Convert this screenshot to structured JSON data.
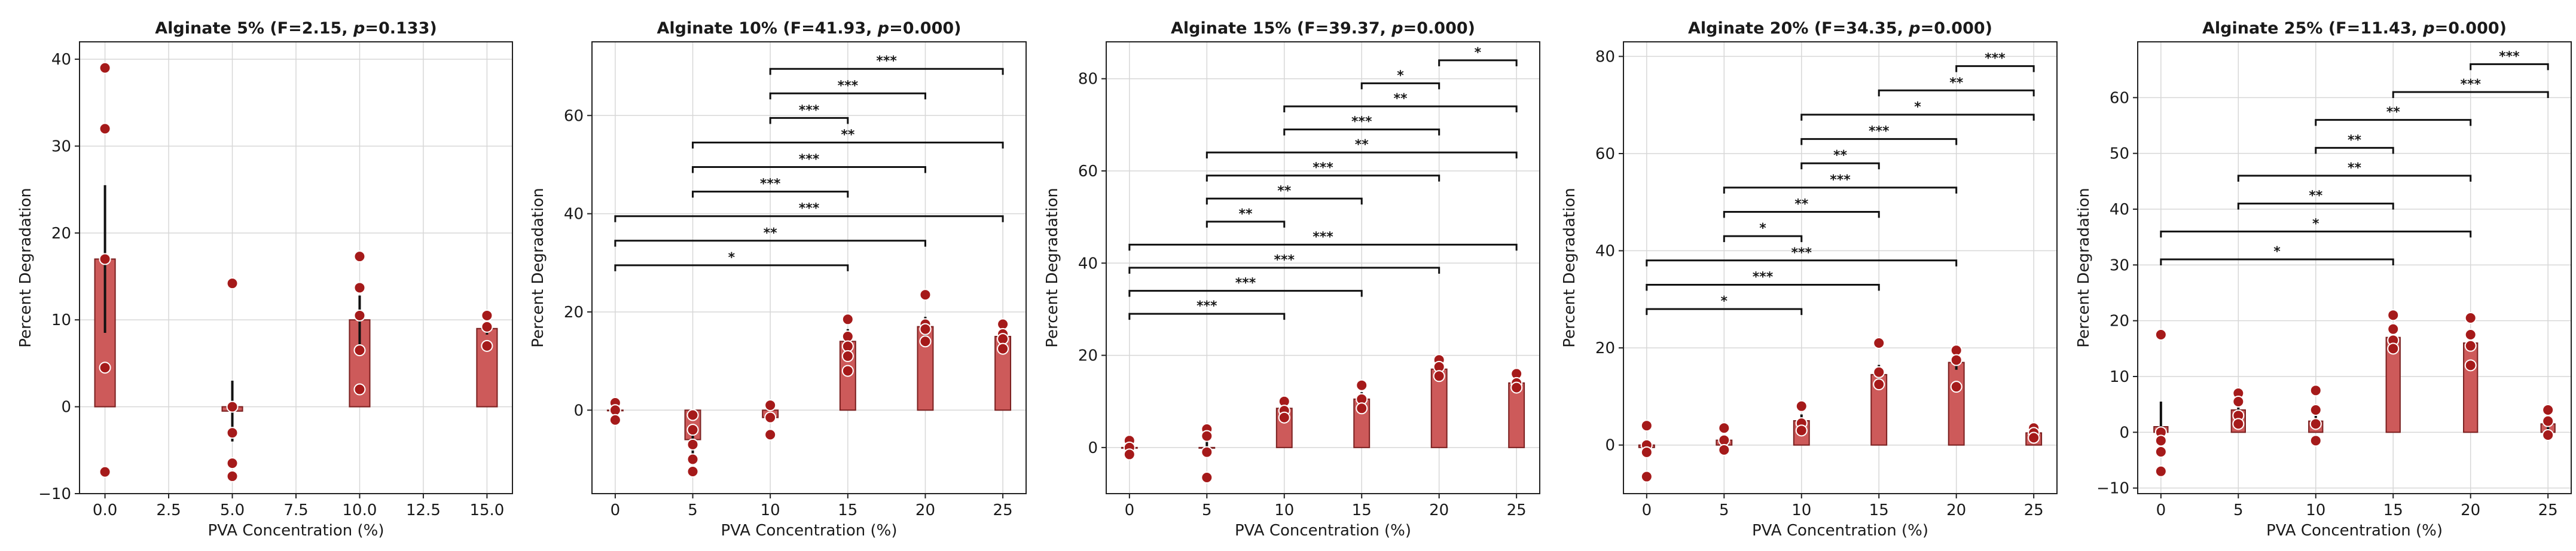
{
  "figure": {
    "title": ""
  },
  "chart_data": [
    {
      "type": "bar",
      "title_prefix": "Alginate 5% (F=2.15, ",
      "title_p": "p",
      "title_suffix": "=0.133)",
      "xlabel": "PVA Concentration (%)",
      "ylabel": "Percent Degradation",
      "xlim": [
        -1,
        16
      ],
      "ylim": [
        -10,
        42
      ],
      "xticks": [
        0,
        2.5,
        5,
        7.5,
        10,
        12.5,
        15
      ],
      "xtick_labels": [
        "0.0",
        "2.5",
        "5.0",
        "7.5",
        "10.0",
        "12.5",
        "15.0"
      ],
      "yticks": [
        -10,
        0,
        10,
        20,
        30,
        40
      ],
      "ytick_labels": [
        "−10",
        "0",
        "10",
        "20",
        "30",
        "40"
      ],
      "bar_width": 0.8,
      "groups": [
        {
          "x": 0,
          "mean": 17,
          "err": 8.5,
          "points": [
            39,
            32,
            17,
            4.5,
            -7.5
          ]
        },
        {
          "x": 5,
          "mean": -0.5,
          "err": 3.5,
          "points": [
            14.2,
            0,
            -3,
            -6.5,
            -8
          ]
        },
        {
          "x": 10,
          "mean": 10,
          "err": 2.8,
          "points": [
            17.3,
            13.7,
            10.5,
            6.5,
            2
          ]
        },
        {
          "x": 15,
          "mean": 9,
          "err": 0.7,
          "points": [
            10.5,
            9.2,
            7
          ]
        }
      ],
      "comparisons": []
    },
    {
      "type": "bar",
      "title_prefix": "Alginate 10% (F=41.93, ",
      "title_p": "p",
      "title_suffix": "=0.000)",
      "xlabel": "PVA Concentration (%)",
      "ylabel": "Percent Degradation",
      "xlim": [
        -1.5,
        26.5
      ],
      "ylim": [
        -17,
        75
      ],
      "xticks": [
        0,
        5,
        10,
        15,
        20,
        25
      ],
      "xtick_labels": [
        "0",
        "5",
        "10",
        "15",
        "20",
        "25"
      ],
      "yticks": [
        0,
        20,
        40,
        60
      ],
      "ytick_labels": [
        "0",
        "20",
        "40",
        "60"
      ],
      "bar_width": 1,
      "groups": [
        {
          "x": 0,
          "mean": 0,
          "err": 0.8,
          "points": [
            1.5,
            0,
            -2
          ]
        },
        {
          "x": 5,
          "mean": -6,
          "err": 3,
          "points": [
            -1,
            -4,
            -7,
            -10,
            -12.5
          ]
        },
        {
          "x": 10,
          "mean": -1.5,
          "err": 1,
          "points": [
            1,
            -1.5,
            -5
          ]
        },
        {
          "x": 15,
          "mean": 14,
          "err": 2.5,
          "points": [
            18.5,
            15,
            13,
            11,
            8
          ]
        },
        {
          "x": 20,
          "mean": 17,
          "err": 2,
          "points": [
            23.5,
            17.5,
            16.5,
            14
          ]
        },
        {
          "x": 25,
          "mean": 15,
          "err": 1.3,
          "points": [
            17.5,
            15.5,
            14.5,
            12.5
          ]
        }
      ],
      "comparisons": [
        {
          "x1": 0,
          "x2": 15,
          "y": 29.5,
          "label": "*"
        },
        {
          "x1": 0,
          "x2": 20,
          "y": 34.5,
          "label": "**"
        },
        {
          "x1": 0,
          "x2": 25,
          "y": 39.5,
          "label": "***"
        },
        {
          "x1": 5,
          "x2": 15,
          "y": 44.5,
          "label": "***"
        },
        {
          "x1": 5,
          "x2": 20,
          "y": 49.5,
          "label": "***"
        },
        {
          "x1": 5,
          "x2": 25,
          "y": 54.5,
          "label": "**"
        },
        {
          "x1": 10,
          "x2": 15,
          "y": 59.5,
          "label": "***"
        },
        {
          "x1": 10,
          "x2": 20,
          "y": 64.5,
          "label": "***"
        },
        {
          "x1": 10,
          "x2": 25,
          "y": 69.5,
          "label": "***"
        }
      ]
    },
    {
      "type": "bar",
      "title_prefix": "Alginate 15% (F=39.37, ",
      "title_p": "p",
      "title_suffix": "=0.000)",
      "xlabel": "PVA Concentration (%)",
      "ylabel": "Percent Degradation",
      "xlim": [
        -1.5,
        26.5
      ],
      "ylim": [
        -10,
        88
      ],
      "xticks": [
        0,
        5,
        10,
        15,
        20,
        25
      ],
      "xtick_labels": [
        "0",
        "5",
        "10",
        "15",
        "20",
        "25"
      ],
      "yticks": [
        0,
        20,
        40,
        60,
        80
      ],
      "ytick_labels": [
        "0",
        "20",
        "40",
        "60",
        "80"
      ],
      "bar_width": 1,
      "groups": [
        {
          "x": 0,
          "mean": 0,
          "err": 0.8,
          "points": [
            1.5,
            0,
            -1.5
          ]
        },
        {
          "x": 5,
          "mean": 0,
          "err": 1.5,
          "points": [
            4,
            2.5,
            -1,
            -6.5
          ]
        },
        {
          "x": 10,
          "mean": 8.5,
          "err": 1.2,
          "points": [
            10,
            8,
            6.5
          ]
        },
        {
          "x": 15,
          "mean": 10.5,
          "err": 1.5,
          "points": [
            13.5,
            10.5,
            8.5
          ]
        },
        {
          "x": 20,
          "mean": 17,
          "err": 1.5,
          "points": [
            19,
            17.5,
            15.5
          ]
        },
        {
          "x": 25,
          "mean": 14,
          "err": 1,
          "points": [
            16,
            14,
            13
          ]
        }
      ],
      "comparisons": [
        {
          "x1": 0,
          "x2": 10,
          "y": 29,
          "label": "***"
        },
        {
          "x1": 0,
          "x2": 15,
          "y": 34,
          "label": "***"
        },
        {
          "x1": 0,
          "x2": 20,
          "y": 39,
          "label": "***"
        },
        {
          "x1": 0,
          "x2": 25,
          "y": 44,
          "label": "***"
        },
        {
          "x1": 5,
          "x2": 10,
          "y": 49,
          "label": "**"
        },
        {
          "x1": 5,
          "x2": 15,
          "y": 54,
          "label": "**"
        },
        {
          "x1": 5,
          "x2": 20,
          "y": 59,
          "label": "***"
        },
        {
          "x1": 5,
          "x2": 25,
          "y": 64,
          "label": "**"
        },
        {
          "x1": 10,
          "x2": 20,
          "y": 69,
          "label": "***"
        },
        {
          "x1": 10,
          "x2": 25,
          "y": 74,
          "label": "**"
        },
        {
          "x1": 15,
          "x2": 20,
          "y": 79,
          "label": "*"
        },
        {
          "x1": 20,
          "x2": 25,
          "y": 84,
          "label": "*"
        }
      ]
    },
    {
      "type": "bar",
      "title_prefix": "Alginate 20% (F=34.35, ",
      "title_p": "p",
      "title_suffix": "=0.000)",
      "xlabel": "PVA Concentration (%)",
      "ylabel": "Percent Degradation",
      "xlim": [
        -1.5,
        26.5
      ],
      "ylim": [
        -10,
        83
      ],
      "xticks": [
        0,
        5,
        10,
        15,
        20,
        25
      ],
      "xtick_labels": [
        "0",
        "5",
        "10",
        "15",
        "20",
        "25"
      ],
      "yticks": [
        0,
        20,
        40,
        60,
        80
      ],
      "ytick_labels": [
        "0",
        "20",
        "40",
        "60",
        "80"
      ],
      "bar_width": 1,
      "groups": [
        {
          "x": 0,
          "mean": -0.5,
          "err": 1.5,
          "points": [
            4,
            0,
            -1.5,
            -6.5
          ]
        },
        {
          "x": 5,
          "mean": 1,
          "err": 1,
          "points": [
            3.5,
            1,
            -1
          ]
        },
        {
          "x": 10,
          "mean": 5,
          "err": 1.3,
          "points": [
            8,
            4.5,
            3
          ]
        },
        {
          "x": 15,
          "mean": 14.5,
          "err": 2,
          "points": [
            21,
            15,
            12.5
          ]
        },
        {
          "x": 20,
          "mean": 17,
          "err": 1.5,
          "points": [
            19.5,
            17.5,
            12
          ]
        },
        {
          "x": 25,
          "mean": 2.5,
          "err": 0.8,
          "points": [
            3.5,
            2.5,
            1.5
          ]
        }
      ],
      "comparisons": [
        {
          "x1": 0,
          "x2": 10,
          "y": 28,
          "label": "*"
        },
        {
          "x1": 0,
          "x2": 15,
          "y": 33,
          "label": "***"
        },
        {
          "x1": 0,
          "x2": 20,
          "y": 38,
          "label": "***"
        },
        {
          "x1": 5,
          "x2": 10,
          "y": 43,
          "label": "*"
        },
        {
          "x1": 5,
          "x2": 15,
          "y": 48,
          "label": "**"
        },
        {
          "x1": 5,
          "x2": 20,
          "y": 53,
          "label": "***"
        },
        {
          "x1": 10,
          "x2": 15,
          "y": 58,
          "label": "**"
        },
        {
          "x1": 10,
          "x2": 20,
          "y": 63,
          "label": "***"
        },
        {
          "x1": 10,
          "x2": 25,
          "y": 68,
          "label": "*"
        },
        {
          "x1": 15,
          "x2": 25,
          "y": 73,
          "label": "**"
        },
        {
          "x1": 20,
          "x2": 25,
          "y": 78,
          "label": "***"
        }
      ]
    },
    {
      "type": "bar",
      "title_prefix": "Alginate 25% (F=11.43, ",
      "title_p": "p",
      "title_suffix": "=0.000)",
      "xlabel": "PVA Concentration (%)",
      "ylabel": "Percent Degradation",
      "xlim": [
        -1.5,
        26.5
      ],
      "ylim": [
        -11,
        70
      ],
      "xticks": [
        0,
        5,
        10,
        15,
        20,
        25
      ],
      "xtick_labels": [
        "0",
        "5",
        "10",
        "15",
        "20",
        "25"
      ],
      "yticks": [
        -10,
        0,
        10,
        20,
        30,
        40,
        50,
        60
      ],
      "ytick_labels": [
        "−10",
        "0",
        "10",
        "20",
        "30",
        "40",
        "50",
        "60"
      ],
      "bar_width": 0.9,
      "groups": [
        {
          "x": 0,
          "mean": 1,
          "err": 4.5,
          "points": [
            17.5,
            0,
            -1.5,
            -3.5,
            -7
          ]
        },
        {
          "x": 5,
          "mean": 4,
          "err": 2,
          "points": [
            7,
            5.5,
            3,
            1.5
          ]
        },
        {
          "x": 10,
          "mean": 2,
          "err": 1.5,
          "points": [
            7.5,
            4,
            1.5,
            -1.5
          ]
        },
        {
          "x": 15,
          "mean": 17,
          "err": 1.5,
          "points": [
            21,
            18.5,
            16.5,
            15
          ]
        },
        {
          "x": 20,
          "mean": 16,
          "err": 1.5,
          "points": [
            20.5,
            17.5,
            15.5,
            12
          ]
        },
        {
          "x": 25,
          "mean": 1.5,
          "err": 1,
          "points": [
            4,
            2,
            -0.5
          ]
        }
      ],
      "comparisons": [
        {
          "x1": 0,
          "x2": 15,
          "y": 31,
          "label": "*"
        },
        {
          "x1": 0,
          "x2": 20,
          "y": 36,
          "label": "*"
        },
        {
          "x1": 5,
          "x2": 15,
          "y": 41,
          "label": "**"
        },
        {
          "x1": 5,
          "x2": 20,
          "y": 46,
          "label": "**"
        },
        {
          "x1": 10,
          "x2": 15,
          "y": 51,
          "label": "**"
        },
        {
          "x1": 10,
          "x2": 20,
          "y": 56,
          "label": "**"
        },
        {
          "x1": 15,
          "x2": 25,
          "y": 61,
          "label": "***"
        },
        {
          "x1": 20,
          "x2": 25,
          "y": 66,
          "label": "***"
        }
      ]
    }
  ]
}
